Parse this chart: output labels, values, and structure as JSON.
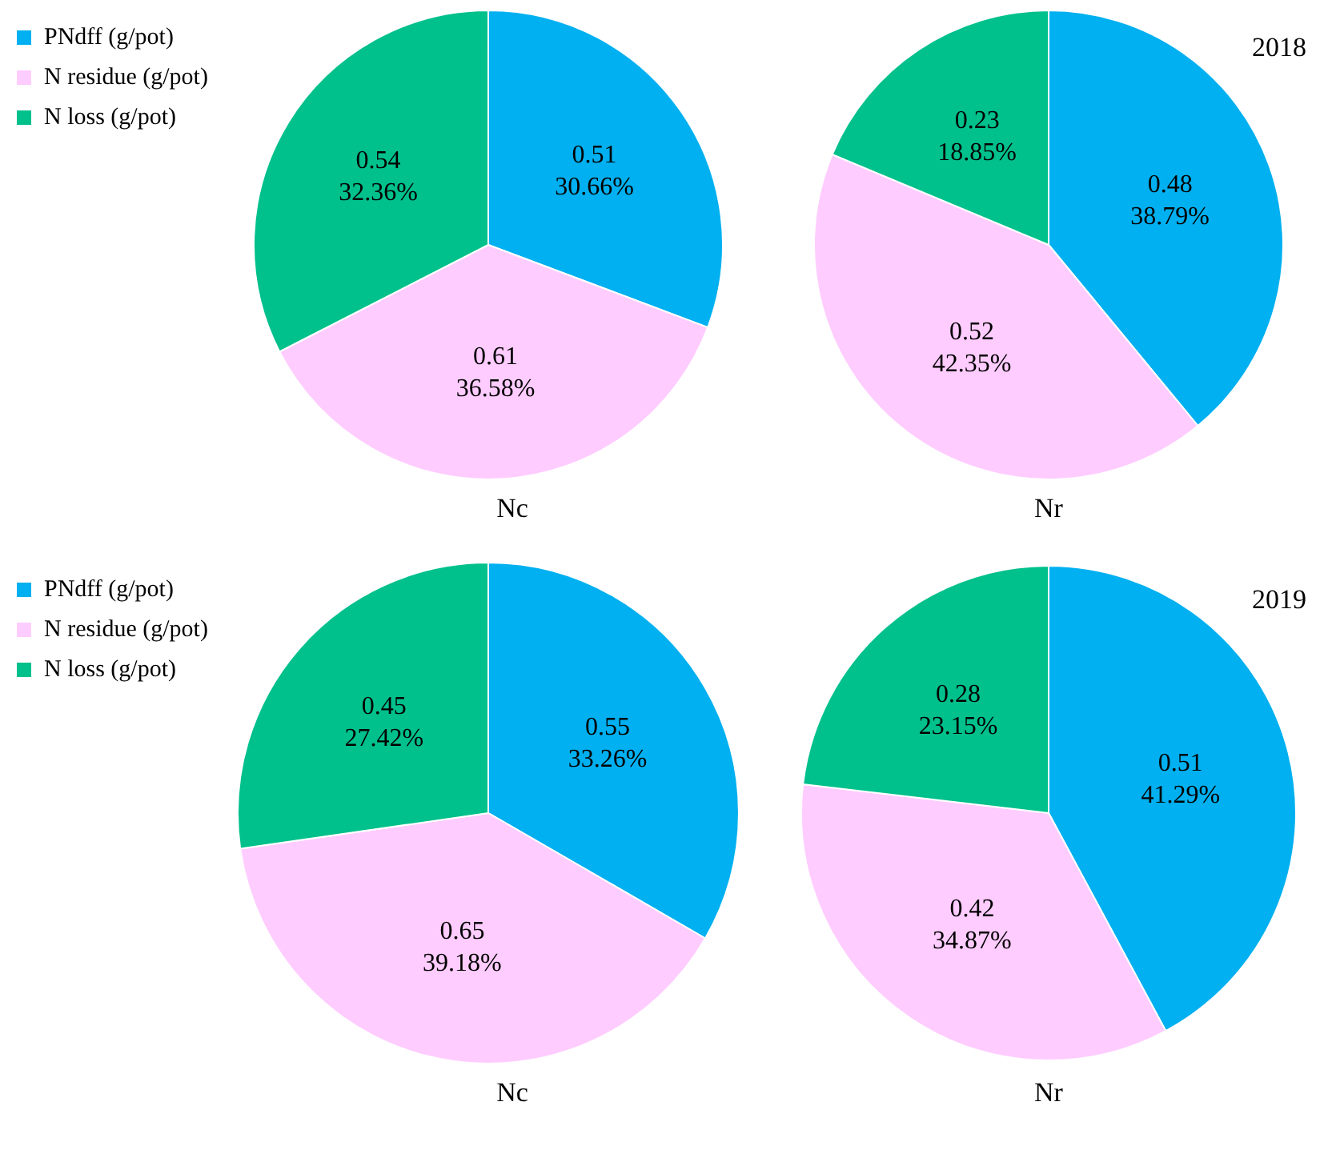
{
  "chart_data": [
    {
      "type": "pie",
      "xlabel": "Nc",
      "categories": [
        "PNdff (g/pot)",
        "N residue (g/pot)",
        "N loss (g/pot)"
      ],
      "values": [
        0.51,
        0.61,
        0.54
      ],
      "colors": [
        "#00b0f0",
        "#ffccff",
        "#00c08c"
      ],
      "value_labels": [
        "0.51\n30.66%",
        "0.61\n36.58%",
        "0.54\n32.36%"
      ],
      "legend": "top left"
    },
    {
      "type": "pie",
      "xlabel": "Nr",
      "annotations": [
        "2018"
      ],
      "categories": [
        null,
        null,
        null
      ],
      "values": [
        0.48,
        0.52,
        0.23
      ],
      "colors": [
        "#00b0f0",
        "#ffccff",
        "#00c08c"
      ],
      "value_labels": [
        "0.48\n38.79%",
        "0.52\n42.35%",
        "0.23\n18.85%"
      ],
      "legend": false
    },
    {
      "type": "pie",
      "xlabel": "Nc",
      "categories": [
        "PNdff (g/pot)",
        "N residue (g/pot)",
        "N loss (g/pot)"
      ],
      "values": [
        0.55,
        0.65,
        0.45
      ],
      "colors": [
        "#00b0f0",
        "#ffccff",
        "#00c08c"
      ],
      "value_labels": [
        "0.55\n33.26%",
        "0.65\n39.18%",
        "0.45\n27.42%"
      ],
      "legend": "top left"
    },
    {
      "type": "pie",
      "xlabel": "Nr",
      "annotations": [
        "2019"
      ],
      "categories": [
        null,
        null,
        null
      ],
      "values": [
        0.51,
        0.42,
        0.28
      ],
      "colors": [
        "#00b0f0",
        "#ffccff",
        "#00c08c"
      ],
      "value_labels": [
        "0.51\n41.29%",
        "0.42\n34.87%",
        "0.28\n23.15%"
      ],
      "legend": false
    }
  ]
}
